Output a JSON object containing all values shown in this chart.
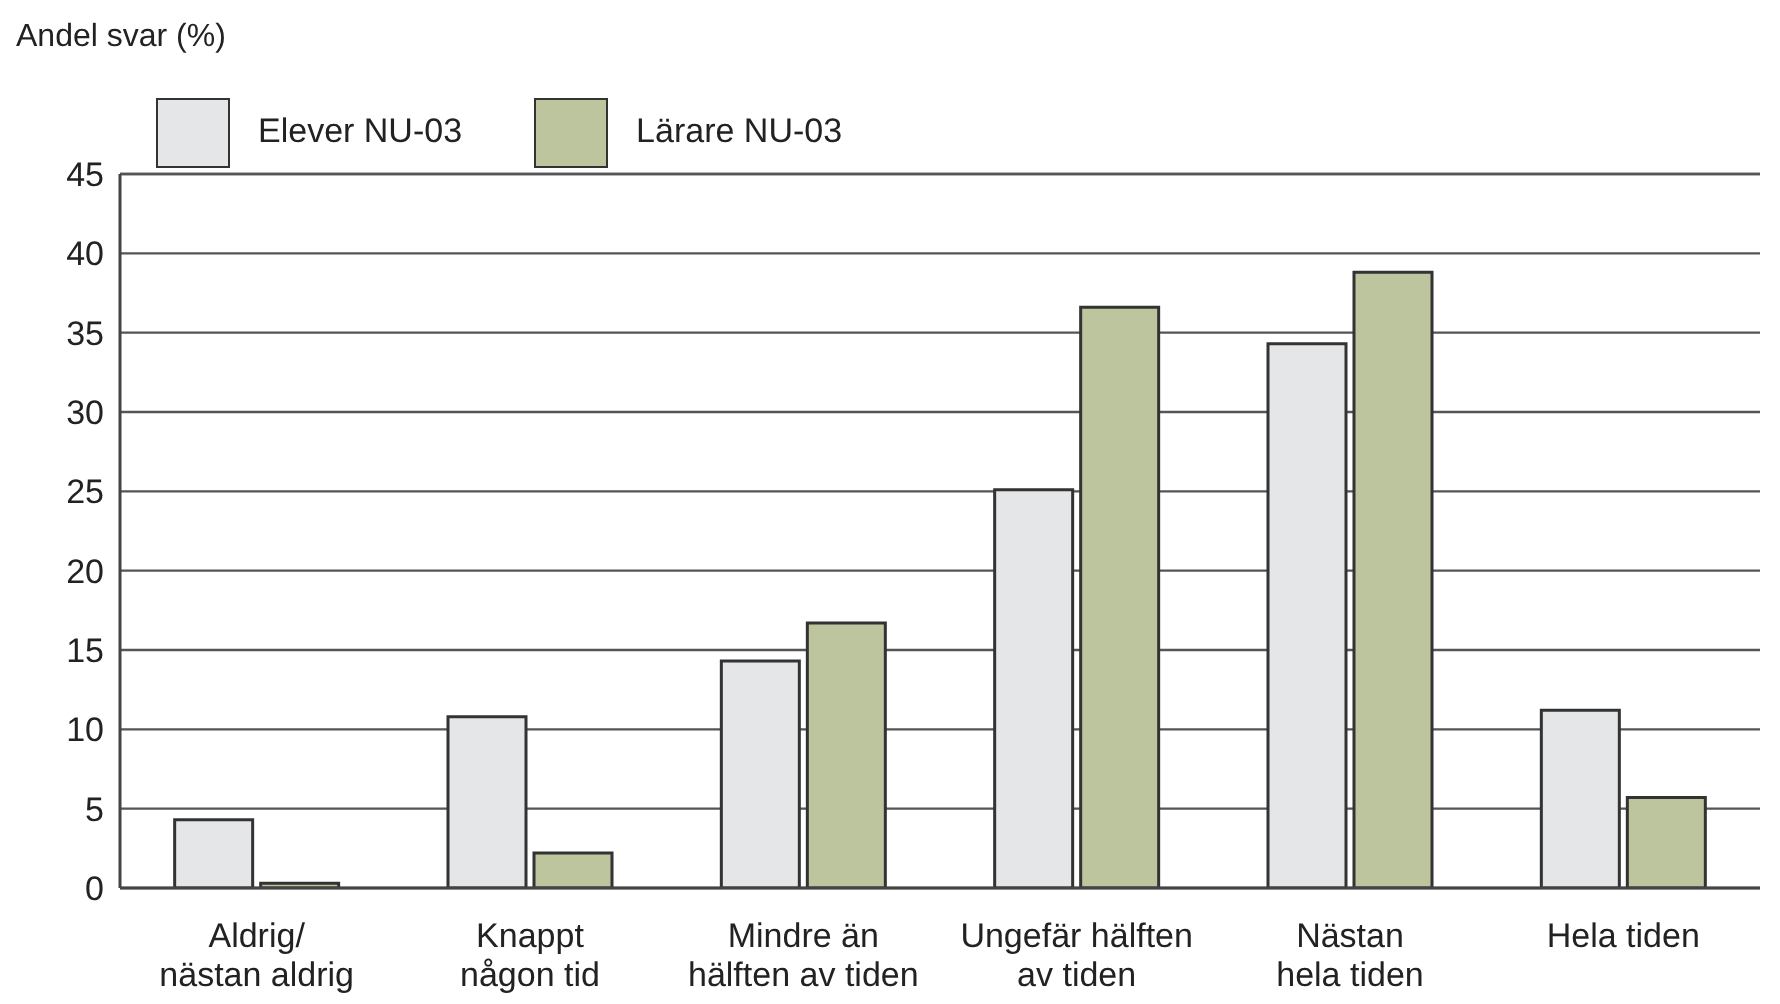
{
  "chart_data": {
    "type": "bar",
    "ylabel": "Andel svar (%)",
    "categories": [
      "Aldrig/\nnästan aldrig",
      "Knappt\nnågon tid",
      "Mindre än\nhälften av tiden",
      "Ungefär hälften\nav tiden",
      "Nästan\nhela tiden",
      "Hela tiden"
    ],
    "series": [
      {
        "name": "Elever NU-03",
        "color": "#e5e6e8",
        "values": [
          4.3,
          10.8,
          14.3,
          25.1,
          34.3,
          11.2
        ]
      },
      {
        "name": "Lärare NU-03",
        "color": "#bdc59f",
        "values": [
          0.3,
          2.2,
          16.7,
          36.6,
          38.8,
          5.7
        ]
      }
    ],
    "ylim": [
      0,
      45
    ],
    "yticks": [
      0,
      5,
      10,
      15,
      20,
      25,
      30,
      35,
      40,
      45
    ],
    "grid": "y",
    "legend": "top left"
  }
}
